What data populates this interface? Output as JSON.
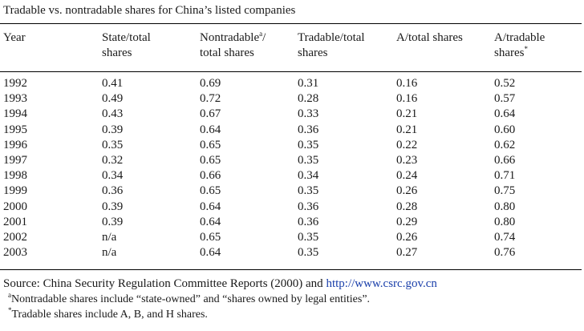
{
  "table": {
    "caption": "Tradable vs. nontradable shares for China’s listed companies",
    "headers": [
      {
        "line1": "Year",
        "line2": "",
        "sup": "",
        "suffix": ""
      },
      {
        "line1": "State/total",
        "line2": "shares",
        "sup": "",
        "suffix": ""
      },
      {
        "line1": "Nontradable",
        "line2": "total shares",
        "sup": "a",
        "suffix": "/"
      },
      {
        "line1": "Tradable/total",
        "line2": "shares",
        "sup": "",
        "suffix": ""
      },
      {
        "line1": "A/total shares",
        "line2": "",
        "sup": "",
        "suffix": ""
      },
      {
        "line1": "A/tradable",
        "line2": "shares",
        "sup": "*",
        "sup_on_line2": true,
        "suffix": ""
      }
    ],
    "rows": [
      [
        "1992",
        "0.41",
        "0.69",
        "0.31",
        "0.16",
        "0.52"
      ],
      [
        "1993",
        "0.49",
        "0.72",
        "0.28",
        "0.16",
        "0.57"
      ],
      [
        "1994",
        "0.43",
        "0.67",
        "0.33",
        "0.21",
        "0.64"
      ],
      [
        "1995",
        "0.39",
        "0.64",
        "0.36",
        "0.21",
        "0.60"
      ],
      [
        "1996",
        "0.35",
        "0.65",
        "0.35",
        "0.22",
        "0.62"
      ],
      [
        "1997",
        "0.32",
        "0.65",
        "0.35",
        "0.23",
        "0.66"
      ],
      [
        "1998",
        "0.34",
        "0.66",
        "0.34",
        "0.24",
        "0.71"
      ],
      [
        "1999",
        "0.36",
        "0.65",
        "0.35",
        "0.26",
        "0.75"
      ],
      [
        "2000",
        "0.39",
        "0.64",
        "0.36",
        "0.28",
        "0.80"
      ],
      [
        "2001",
        "0.39",
        "0.64",
        "0.36",
        "0.29",
        "0.80"
      ],
      [
        "2002",
        "n/a",
        "0.65",
        "0.35",
        "0.26",
        "0.74"
      ],
      [
        "2003",
        "n/a",
        "0.64",
        "0.35",
        "0.27",
        "0.76"
      ]
    ]
  },
  "notes": {
    "source_prefix": "Source: China Security Regulation Committee Reports (2000) and ",
    "source_link": "http://www.csrc.gov.cn",
    "note_a_marker": "a",
    "note_a_text": "Nontradable shares include “state-owned” and “shares owned by legal entities”.",
    "note_star_marker": "*",
    "note_star_text": "Tradable shares include A, B, and H shares."
  },
  "colors": {
    "link": "#1a3faa",
    "text": "#1a1a1a"
  }
}
